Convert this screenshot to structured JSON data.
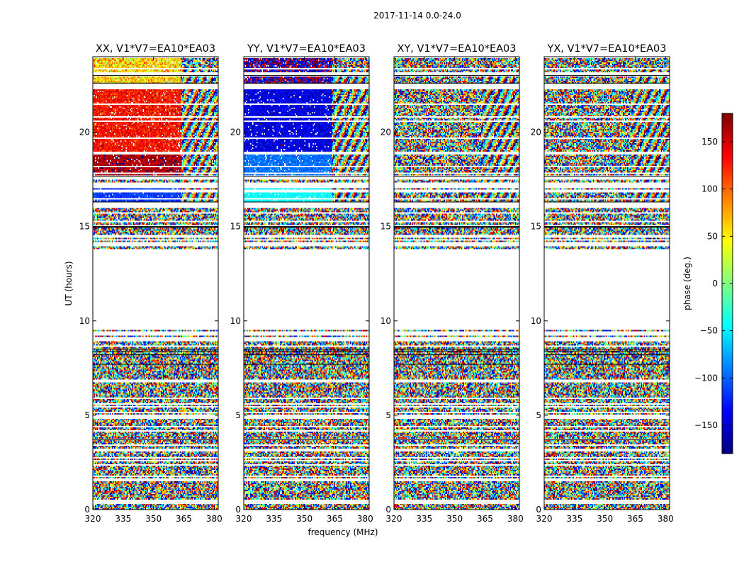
{
  "figure": {
    "suptitle": "2017-11-14 0.0-24.0",
    "xlabel": "frequency (MHz)",
    "ylabel": "UT (hours)",
    "colorbar_label": "phase (deg.)"
  },
  "chart_data": {
    "type": "heatmap",
    "title": "2017-11-14 0.0-24.0",
    "xlabel": "frequency (MHz)",
    "ylabel": "UT (hours)",
    "xlim": [
      320,
      382
    ],
    "ylim": [
      0,
      24
    ],
    "x_ticks": [
      320,
      335,
      350,
      365,
      380
    ],
    "y_ticks": [
      0,
      5,
      10,
      15,
      20
    ],
    "colorbar": {
      "label": "phase (deg.)",
      "range": [
        -180,
        180
      ],
      "ticks": [
        150,
        100,
        50,
        0,
        -50,
        -100,
        -150
      ],
      "tick_labels": [
        "150",
        "100",
        "50",
        "0",
        "−50",
        "−100",
        "−150"
      ],
      "colormap": "jet",
      "stops": [
        "#00007f",
        "#0000ff",
        "#00ffff",
        "#7fff7f",
        "#ffff00",
        "#ff0000",
        "#7f0000"
      ]
    },
    "panels": [
      {
        "title": "XX, V1*V7=EA10*EA03",
        "coherent_blocks": [
          {
            "ut": [
              22.6,
              24.0
            ],
            "freq_end": 363.5,
            "phase_mean": 60,
            "spread": 70
          },
          {
            "ut": [
              19.0,
              22.3
            ],
            "freq_end": 363.5,
            "phase_mean": 130,
            "spread": 45
          },
          {
            "ut": [
              17.7,
              19.0
            ],
            "freq_end": 363.5,
            "phase_mean": 165,
            "spread": 30
          },
          {
            "ut": [
              16.3,
              17.0
            ],
            "freq_end": 363.5,
            "phase_mean": -115,
            "spread": 25
          }
        ]
      },
      {
        "title": "YY, V1*V7=EA10*EA03",
        "coherent_blocks": [
          {
            "ut": [
              22.6,
              24.0
            ],
            "freq_end": 363.5,
            "phase_mean": -170,
            "spread": 90
          },
          {
            "ut": [
              19.0,
              22.3
            ],
            "freq_end": 363.5,
            "phase_mean": -145,
            "spread": 35
          },
          {
            "ut": [
              17.7,
              19.0
            ],
            "freq_end": 363.5,
            "phase_mean": -95,
            "spread": 25
          },
          {
            "ut": [
              16.3,
              17.0
            ],
            "freq_end": 363.5,
            "phase_mean": -45,
            "spread": 15
          }
        ]
      },
      {
        "title": "XY, V1*V7=EA10*EA03",
        "coherent_blocks": []
      },
      {
        "title": "YX, V1*V7=EA10*EA03",
        "coherent_blocks": []
      }
    ],
    "data_gaps_ut": [
      [
        13.8,
        15.0,
        "partial"
      ],
      [
        9.6,
        13.8,
        "full"
      ],
      [
        16.0,
        16.3,
        "full"
      ],
      [
        17.0,
        17.3,
        "full"
      ],
      [
        17.5,
        17.7,
        "full"
      ],
      [
        22.3,
        22.6,
        "full"
      ],
      [
        23.0,
        23.1,
        "full"
      ],
      [
        6.75,
        6.9,
        "full"
      ],
      [
        5.4,
        5.5,
        "full"
      ],
      [
        1.5,
        1.6,
        "full"
      ],
      [
        0.35,
        0.45,
        "full"
      ]
    ]
  }
}
